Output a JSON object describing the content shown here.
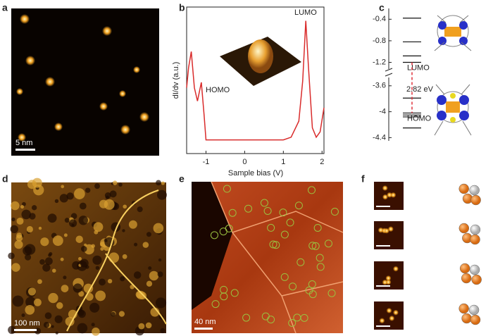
{
  "panel_labels": [
    "a",
    "b",
    "c",
    "d",
    "e",
    "f"
  ],
  "scale_bars": {
    "a": "5 nm",
    "d": "100 nm",
    "e": "40 nm"
  },
  "chart_data": [
    {
      "type": "line",
      "xlabel": "Sample bias (V)",
      "ylabel": "dI/dv (a.u.)",
      "annotations": [
        "HOMO",
        "LUMO"
      ],
      "x": [
        -1.5,
        -1.45,
        -1.38,
        -1.3,
        -1.22,
        -1.12,
        -1.05,
        -1.0,
        -0.5,
        0,
        0.5,
        1.0,
        1.2,
        1.4,
        1.5,
        1.58,
        1.65,
        1.75,
        1.85,
        1.95,
        2.05
      ],
      "series": [
        {
          "color": "#d92b2b",
          "values": [
            0.45,
            0.6,
            0.72,
            0.45,
            0.35,
            0.49,
            0.25,
            0.06,
            0.06,
            0.06,
            0.06,
            0.06,
            0.08,
            0.2,
            0.5,
            0.95,
            0.6,
            0.15,
            0.08,
            0.12,
            0.3
          ]
        }
      ],
      "xlim": [
        -1.5,
        2.05
      ],
      "ylim": [
        0,
        1
      ],
      "xticks": [
        -1,
        0,
        1,
        2
      ]
    },
    {
      "type": "levels",
      "levels": [
        -0.38,
        -0.82,
        -1.08,
        -1.2,
        -3.79,
        -4.02,
        -4.05,
        -4.08,
        -4.25
      ],
      "ylim": [
        -4.45,
        -0.2
      ],
      "axis_break": [
        -1.35,
        -3.45
      ],
      "yticks": [
        -0.4,
        -0.8,
        -1.2,
        -3.6,
        -4.0,
        -4.4
      ],
      "annotations": [
        {
          "text": "LUMO",
          "y": -1.2
        },
        {
          "text": "HOMO",
          "y": -4.02
        }
      ],
      "gap": {
        "text": "2.82 eV",
        "from": -1.2,
        "to": -4.02,
        "color": "#e0303a"
      }
    }
  ]
}
